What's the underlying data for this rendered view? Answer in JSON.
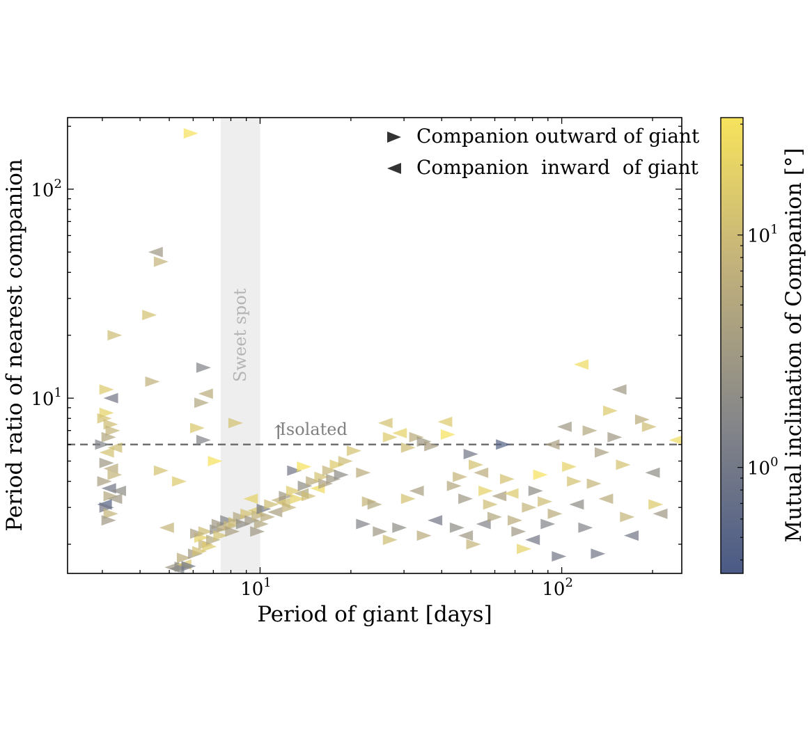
{
  "chart_data": {
    "type": "scatter",
    "title": "",
    "xlabel": "Period of giant [days]",
    "ylabel": "Period ratio of nearest companion",
    "xscale": "log",
    "yscale": "log",
    "xlim": [
      2.3,
      250
    ],
    "ylim": [
      1.45,
      220
    ],
    "grid": false,
    "legend_placement": "top-right",
    "x_ticks": [
      {
        "value": 10,
        "base": "10",
        "exp": "1"
      },
      {
        "value": 100,
        "base": "10",
        "exp": "2"
      }
    ],
    "y_ticks": [
      {
        "value": 10,
        "base": "10",
        "exp": "1"
      },
      {
        "value": 100,
        "base": "10",
        "exp": "2"
      }
    ],
    "legend": [
      {
        "label": "Companion outward of giant",
        "marker": "triangle-right"
      },
      {
        "label": "Companion  inward  of giant",
        "marker": "triangle-left"
      }
    ],
    "annotations": {
      "sweet_spot": {
        "label": "Sweet spot",
        "x_range": [
          7.4,
          10.0
        ],
        "color": "#eeeeee"
      },
      "isolated": {
        "label": "Isolated",
        "arrow": "↑",
        "threshold_y": 6.0,
        "color": "#777777"
      }
    },
    "colorbar": {
      "label": "Mutual inclination of Companion [°]",
      "scale": "log",
      "range": [
        0.35,
        32
      ],
      "colors": [
        "#4a5a86",
        "#858689",
        "#c3b27b",
        "#f7e35c"
      ],
      "ticks": [
        {
          "value": 1,
          "base": "10",
          "exp": "0"
        },
        {
          "value": 10,
          "base": "10",
          "exp": "1"
        }
      ]
    },
    "points": [
      {
        "x": 5.9,
        "y": 185,
        "d": "R",
        "c": 30
      },
      {
        "x": 4.5,
        "y": 50,
        "d": "L",
        "c": 3
      },
      {
        "x": 4.7,
        "y": 45,
        "d": "R",
        "c": 8
      },
      {
        "x": 4.3,
        "y": 25,
        "d": "R",
        "c": 12
      },
      {
        "x": 3.3,
        "y": 20,
        "d": "R",
        "c": 10
      },
      {
        "x": 4.4,
        "y": 12,
        "d": "R",
        "c": 7
      },
      {
        "x": 6.5,
        "y": 14,
        "d": "R",
        "c": 1.5
      },
      {
        "x": 3.1,
        "y": 11,
        "d": "R",
        "c": 15
      },
      {
        "x": 3.2,
        "y": 10,
        "d": "L",
        "c": 1
      },
      {
        "x": 6.6,
        "y": 10.5,
        "d": "L",
        "c": 6
      },
      {
        "x": 6.4,
        "y": 9.5,
        "d": "R",
        "c": 5
      },
      {
        "x": 3.1,
        "y": 8.5,
        "d": "R",
        "c": 20
      },
      {
        "x": 3.05,
        "y": 8.0,
        "d": "R",
        "c": 12
      },
      {
        "x": 3.2,
        "y": 7.5,
        "d": "R",
        "c": 10
      },
      {
        "x": 3.25,
        "y": 7.0,
        "d": "R",
        "c": 8
      },
      {
        "x": 6.2,
        "y": 7.2,
        "d": "R",
        "c": 14
      },
      {
        "x": 8.3,
        "y": 7.6,
        "d": "R",
        "c": 12
      },
      {
        "x": 3.15,
        "y": 6.5,
        "d": "R",
        "c": 5
      },
      {
        "x": 6.5,
        "y": 6.3,
        "d": "R",
        "c": 1.5
      },
      {
        "x": 3.0,
        "y": 6.0,
        "d": "R",
        "c": 1.5
      },
      {
        "x": 3.3,
        "y": 5.8,
        "d": "L",
        "c": 10
      },
      {
        "x": 3.1,
        "y": 5.5,
        "d": "L",
        "c": 12
      },
      {
        "x": 7.1,
        "y": 5.0,
        "d": "R",
        "c": 30
      },
      {
        "x": 3.1,
        "y": 4.9,
        "d": "R",
        "c": 3
      },
      {
        "x": 3.2,
        "y": 4.6,
        "d": "L",
        "c": 6
      },
      {
        "x": 3.3,
        "y": 4.3,
        "d": "R",
        "c": 8
      },
      {
        "x": 4.7,
        "y": 4.5,
        "d": "R",
        "c": 12
      },
      {
        "x": 5.4,
        "y": 4.0,
        "d": "R",
        "c": 15
      },
      {
        "x": 3.05,
        "y": 4.0,
        "d": "R",
        "c": 4
      },
      {
        "x": 3.15,
        "y": 3.7,
        "d": "L",
        "c": 1
      },
      {
        "x": 3.4,
        "y": 3.6,
        "d": "L",
        "c": 2
      },
      {
        "x": 3.2,
        "y": 3.4,
        "d": "R",
        "c": 5
      },
      {
        "x": 3.3,
        "y": 3.3,
        "d": "L",
        "c": 3
      },
      {
        "x": 3.05,
        "y": 3.1,
        "d": "L",
        "c": 0.5
      },
      {
        "x": 3.1,
        "y": 3.0,
        "d": "R",
        "c": 1
      },
      {
        "x": 3.2,
        "y": 2.8,
        "d": "R",
        "c": 8
      },
      {
        "x": 3.15,
        "y": 2.6,
        "d": "R",
        "c": 3
      },
      {
        "x": 4.9,
        "y": 2.4,
        "d": "L",
        "c": 8
      },
      {
        "x": 5.1,
        "y": 1.55,
        "d": "L",
        "c": 3
      },
      {
        "x": 5.3,
        "y": 1.53,
        "d": "L",
        "c": 1.5
      },
      {
        "x": 5.5,
        "y": 1.56,
        "d": "R",
        "c": 2
      },
      {
        "x": 5.6,
        "y": 1.6,
        "d": "L",
        "c": 15
      },
      {
        "x": 5.8,
        "y": 1.57,
        "d": "R",
        "c": 1
      },
      {
        "x": 5.6,
        "y": 1.72,
        "d": "R",
        "c": 6
      },
      {
        "x": 6.1,
        "y": 1.8,
        "d": "R",
        "c": 3
      },
      {
        "x": 6.3,
        "y": 1.85,
        "d": "R",
        "c": 12
      },
      {
        "x": 6.6,
        "y": 2.0,
        "d": "R",
        "c": 8
      },
      {
        "x": 6.8,
        "y": 1.95,
        "d": "R",
        "c": 15
      },
      {
        "x": 6.4,
        "y": 2.15,
        "d": "R",
        "c": 20
      },
      {
        "x": 7.0,
        "y": 2.1,
        "d": "R",
        "c": 5
      },
      {
        "x": 6.2,
        "y": 2.25,
        "d": "R",
        "c": 4
      },
      {
        "x": 6.6,
        "y": 2.3,
        "d": "R",
        "c": 10
      },
      {
        "x": 7.2,
        "y": 2.35,
        "d": "R",
        "c": 2
      },
      {
        "x": 7.4,
        "y": 2.2,
        "d": "R",
        "c": 12
      },
      {
        "x": 7.6,
        "y": 2.4,
        "d": "R",
        "c": 6
      },
      {
        "x": 7.3,
        "y": 2.5,
        "d": "R",
        "c": 3
      },
      {
        "x": 7.8,
        "y": 2.6,
        "d": "R",
        "c": 1.5
      },
      {
        "x": 8.0,
        "y": 2.45,
        "d": "R",
        "c": 8
      },
      {
        "x": 8.3,
        "y": 2.55,
        "d": "R",
        "c": 10
      },
      {
        "x": 8.1,
        "y": 2.3,
        "d": "R",
        "c": 4
      },
      {
        "x": 8.6,
        "y": 2.7,
        "d": "R",
        "c": 5
      },
      {
        "x": 8.8,
        "y": 2.5,
        "d": "R",
        "c": 2
      },
      {
        "x": 9.1,
        "y": 2.8,
        "d": "R",
        "c": 12
      },
      {
        "x": 9.4,
        "y": 2.6,
        "d": "R",
        "c": 3
      },
      {
        "x": 9.6,
        "y": 2.9,
        "d": "L",
        "c": 15
      },
      {
        "x": 9.9,
        "y": 2.75,
        "d": "R",
        "c": 8
      },
      {
        "x": 10.3,
        "y": 2.95,
        "d": "R",
        "c": 1
      },
      {
        "x": 10.6,
        "y": 2.7,
        "d": "R",
        "c": 6
      },
      {
        "x": 10.9,
        "y": 3.1,
        "d": "R",
        "c": 10
      },
      {
        "x": 9.3,
        "y": 3.3,
        "d": "L",
        "c": 20
      },
      {
        "x": 9.8,
        "y": 2.3,
        "d": "R",
        "c": 3
      },
      {
        "x": 10.1,
        "y": 2.5,
        "d": "R",
        "c": 5
      },
      {
        "x": 11.2,
        "y": 2.85,
        "d": "L",
        "c": 4
      },
      {
        "x": 11.5,
        "y": 3.25,
        "d": "L",
        "c": 7
      },
      {
        "x": 11.9,
        "y": 3.15,
        "d": "L",
        "c": 12
      },
      {
        "x": 12.2,
        "y": 3.4,
        "d": "R",
        "c": 3
      },
      {
        "x": 12.5,
        "y": 3.0,
        "d": "R",
        "c": 8
      },
      {
        "x": 12.9,
        "y": 3.6,
        "d": "R",
        "c": 15
      },
      {
        "x": 13.3,
        "y": 3.3,
        "d": "R",
        "c": 20
      },
      {
        "x": 13.7,
        "y": 3.5,
        "d": "L",
        "c": 5
      },
      {
        "x": 14.1,
        "y": 3.8,
        "d": "R",
        "c": 2
      },
      {
        "x": 14.5,
        "y": 3.4,
        "d": "R",
        "c": 10
      },
      {
        "x": 15.0,
        "y": 4.0,
        "d": "R",
        "c": 6
      },
      {
        "x": 15.5,
        "y": 3.7,
        "d": "L",
        "c": 25
      },
      {
        "x": 16.0,
        "y": 4.2,
        "d": "R",
        "c": 12
      },
      {
        "x": 16.5,
        "y": 3.9,
        "d": "R",
        "c": 4
      },
      {
        "x": 17.0,
        "y": 4.5,
        "d": "R",
        "c": 8
      },
      {
        "x": 17.5,
        "y": 4.1,
        "d": "R",
        "c": 3
      },
      {
        "x": 18.0,
        "y": 4.8,
        "d": "R",
        "c": 15
      },
      {
        "x": 18.6,
        "y": 4.3,
        "d": "R",
        "c": 2
      },
      {
        "x": 19.2,
        "y": 5.0,
        "d": "R",
        "c": 10
      },
      {
        "x": 13.0,
        "y": 4.5,
        "d": "R",
        "c": 1
      },
      {
        "x": 14.0,
        "y": 4.7,
        "d": "R",
        "c": 30
      },
      {
        "x": 20.5,
        "y": 5.6,
        "d": "R",
        "c": 12
      },
      {
        "x": 22.0,
        "y": 4.4,
        "d": "R",
        "c": 6
      },
      {
        "x": 23.0,
        "y": 3.2,
        "d": "R",
        "c": 8
      },
      {
        "x": 24.0,
        "y": 3.1,
        "d": "R",
        "c": 5
      },
      {
        "x": 26.0,
        "y": 7.6,
        "d": "L",
        "c": 12
      },
      {
        "x": 27.0,
        "y": 6.5,
        "d": "R",
        "c": 15
      },
      {
        "x": 29.0,
        "y": 6.8,
        "d": "L",
        "c": 20
      },
      {
        "x": 31.0,
        "y": 5.8,
        "d": "R",
        "c": 10
      },
      {
        "x": 33.0,
        "y": 6.5,
        "d": "R",
        "c": 6
      },
      {
        "x": 35.0,
        "y": 6.2,
        "d": "R",
        "c": 3
      },
      {
        "x": 37.0,
        "y": 5.9,
        "d": "R",
        "c": 4
      },
      {
        "x": 22.0,
        "y": 2.5,
        "d": "R",
        "c": 1.5
      },
      {
        "x": 25.0,
        "y": 2.3,
        "d": "R",
        "c": 3
      },
      {
        "x": 27.0,
        "y": 2.1,
        "d": "R",
        "c": 10
      },
      {
        "x": 29.0,
        "y": 2.4,
        "d": "R",
        "c": 2
      },
      {
        "x": 31.0,
        "y": 3.3,
        "d": "R",
        "c": 12
      },
      {
        "x": 33.0,
        "y": 3.6,
        "d": "L",
        "c": 4
      },
      {
        "x": 35.0,
        "y": 2.2,
        "d": "R",
        "c": 6
      },
      {
        "x": 38.0,
        "y": 2.6,
        "d": "L",
        "c": 1
      },
      {
        "x": 41.0,
        "y": 7.7,
        "d": "L",
        "c": 15
      },
      {
        "x": 42.0,
        "y": 6.7,
        "d": "R",
        "c": 30
      },
      {
        "x": 44.0,
        "y": 3.8,
        "d": "R",
        "c": 5
      },
      {
        "x": 46.0,
        "y": 4.2,
        "d": "R",
        "c": 8
      },
      {
        "x": 48.0,
        "y": 3.3,
        "d": "R",
        "c": 3
      },
      {
        "x": 50.0,
        "y": 5.4,
        "d": "R",
        "c": 1
      },
      {
        "x": 52.0,
        "y": 4.8,
        "d": "R",
        "c": 12
      },
      {
        "x": 54.0,
        "y": 4.4,
        "d": "L",
        "c": 6
      },
      {
        "x": 56.0,
        "y": 3.6,
        "d": "R",
        "c": 20
      },
      {
        "x": 58.0,
        "y": 3.1,
        "d": "R",
        "c": 10
      },
      {
        "x": 45.0,
        "y": 2.4,
        "d": "R",
        "c": 2
      },
      {
        "x": 48.0,
        "y": 2.2,
        "d": "L",
        "c": 3
      },
      {
        "x": 51.0,
        "y": 2.0,
        "d": "R",
        "c": 8
      },
      {
        "x": 55.0,
        "y": 2.5,
        "d": "L",
        "c": 1.5
      },
      {
        "x": 60.0,
        "y": 2.7,
        "d": "R",
        "c": 5
      },
      {
        "x": 62.0,
        "y": 3.4,
        "d": "L",
        "c": 4
      },
      {
        "x": 64.0,
        "y": 6.0,
        "d": "R",
        "c": 0.5
      },
      {
        "x": 66.0,
        "y": 4.1,
        "d": "R",
        "c": 12
      },
      {
        "x": 68.0,
        "y": 3.5,
        "d": "L",
        "c": 15
      },
      {
        "x": 70.0,
        "y": 2.6,
        "d": "R",
        "c": 6
      },
      {
        "x": 72.0,
        "y": 2.3,
        "d": "R",
        "c": 3
      },
      {
        "x": 75.0,
        "y": 1.9,
        "d": "R",
        "c": 20
      },
      {
        "x": 78.0,
        "y": 3.0,
        "d": "R",
        "c": 8
      },
      {
        "x": 80.0,
        "y": 2.1,
        "d": "L",
        "c": 1
      },
      {
        "x": 82.0,
        "y": 3.6,
        "d": "R",
        "c": 2
      },
      {
        "x": 85.0,
        "y": 4.3,
        "d": "R",
        "c": 30
      },
      {
        "x": 88.0,
        "y": 3.2,
        "d": "R",
        "c": 10
      },
      {
        "x": 90.0,
        "y": 2.5,
        "d": "R",
        "c": 1.5
      },
      {
        "x": 93.0,
        "y": 6.0,
        "d": "L",
        "c": 4
      },
      {
        "x": 95.0,
        "y": 2.8,
        "d": "R",
        "c": 6
      },
      {
        "x": 98.0,
        "y": 1.75,
        "d": "R",
        "c": 1
      },
      {
        "x": 102.0,
        "y": 7.3,
        "d": "L",
        "c": 3
      },
      {
        "x": 106.0,
        "y": 4.7,
        "d": "R",
        "c": 20
      },
      {
        "x": 110.0,
        "y": 4.0,
        "d": "R",
        "c": 12
      },
      {
        "x": 112.0,
        "y": 3.1,
        "d": "L",
        "c": 2
      },
      {
        "x": 116.0,
        "y": 14.5,
        "d": "L",
        "c": 25
      },
      {
        "x": 120.0,
        "y": 2.4,
        "d": "R",
        "c": 1.5
      },
      {
        "x": 124.0,
        "y": 7.0,
        "d": "R",
        "c": 5
      },
      {
        "x": 128.0,
        "y": 3.9,
        "d": "R",
        "c": 8
      },
      {
        "x": 132.0,
        "y": 1.8,
        "d": "R",
        "c": 1
      },
      {
        "x": 136.0,
        "y": 5.5,
        "d": "R",
        "c": 4
      },
      {
        "x": 140.0,
        "y": 3.3,
        "d": "L",
        "c": 6
      },
      {
        "x": 145.0,
        "y": 8.7,
        "d": "R",
        "c": 15
      },
      {
        "x": 150.0,
        "y": 6.5,
        "d": "R",
        "c": 3
      },
      {
        "x": 155.0,
        "y": 11.0,
        "d": "L",
        "c": 3
      },
      {
        "x": 160.0,
        "y": 4.8,
        "d": "R",
        "c": 12
      },
      {
        "x": 165.0,
        "y": 2.7,
        "d": "R",
        "c": 8
      },
      {
        "x": 170.0,
        "y": 2.2,
        "d": "L",
        "c": 1
      },
      {
        "x": 185.0,
        "y": 7.9,
        "d": "R",
        "c": 6
      },
      {
        "x": 195.0,
        "y": 7.3,
        "d": "R",
        "c": 10
      },
      {
        "x": 200.0,
        "y": 4.4,
        "d": "L",
        "c": 2
      },
      {
        "x": 205.0,
        "y": 3.1,
        "d": "R",
        "c": 15
      },
      {
        "x": 212.0,
        "y": 2.8,
        "d": "L",
        "c": 3
      },
      {
        "x": 240.0,
        "y": 6.3,
        "d": "L",
        "c": 25
      }
    ]
  }
}
